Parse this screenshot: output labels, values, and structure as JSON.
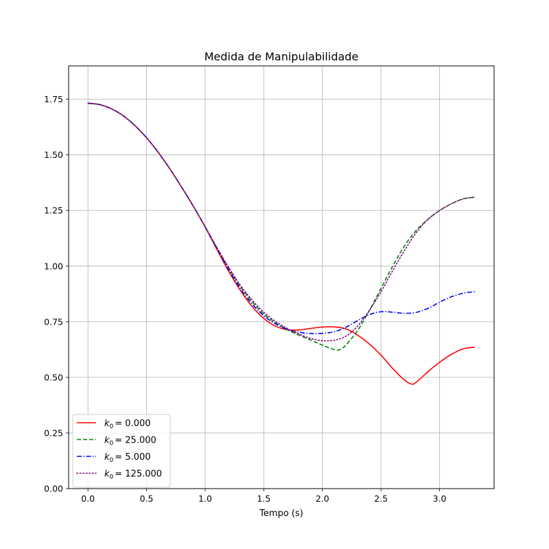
{
  "chart_data": {
    "type": "line",
    "title": "Medida de Manipulabilidade",
    "xlabel": "Tempo (s)",
    "ylabel": "",
    "xlim": [
      -0.165,
      3.465
    ],
    "ylim": [
      0.0,
      1.9
    ],
    "xticks": [
      0.0,
      0.5,
      1.0,
      1.5,
      2.0,
      2.5,
      3.0
    ],
    "xtick_labels": [
      "0.0",
      "0.5",
      "1.0",
      "1.5",
      "2.0",
      "2.5",
      "3.0"
    ],
    "yticks": [
      0.0,
      0.25,
      0.5,
      0.75,
      1.0,
      1.25,
      1.5,
      1.75
    ],
    "ytick_labels": [
      "0.00",
      "0.25",
      "0.50",
      "0.75",
      "1.00",
      "1.25",
      "1.50",
      "1.75"
    ],
    "grid": true,
    "legend_position": "lower-left",
    "series": [
      {
        "name": "k0 = 0.000",
        "legend_symbol": "k",
        "legend_sub": "0",
        "legend_value": "= 0.000",
        "color": "#ff0000",
        "style": "solid",
        "x": [
          0.0,
          0.1,
          0.2,
          0.3,
          0.4,
          0.5,
          0.6,
          0.7,
          0.8,
          0.9,
          1.0,
          1.1,
          1.2,
          1.3,
          1.4,
          1.5,
          1.6,
          1.7,
          1.8,
          1.9,
          2.0,
          2.1,
          2.2,
          2.3,
          2.4,
          2.5,
          2.6,
          2.7,
          2.76,
          2.8,
          2.9,
          3.0,
          3.1,
          3.2,
          3.3
        ],
        "y": [
          1.732,
          1.726,
          1.707,
          1.676,
          1.632,
          1.577,
          1.511,
          1.436,
          1.354,
          1.268,
          1.175,
          1.075,
          0.977,
          0.891,
          0.819,
          0.765,
          0.73,
          0.714,
          0.713,
          0.72,
          0.726,
          0.727,
          0.718,
          0.69,
          0.65,
          0.6,
          0.54,
          0.488,
          0.47,
          0.478,
          0.525,
          0.568,
          0.603,
          0.628,
          0.636
        ]
      },
      {
        "name": "k0 = 25.000",
        "legend_symbol": "k",
        "legend_sub": "0",
        "legend_value": "= 25.000",
        "color": "#008000",
        "style": "dashed",
        "x": [
          0.0,
          0.1,
          0.2,
          0.3,
          0.4,
          0.5,
          0.6,
          0.7,
          0.8,
          0.9,
          1.0,
          1.1,
          1.2,
          1.3,
          1.4,
          1.5,
          1.6,
          1.7,
          1.8,
          1.9,
          2.0,
          2.1,
          2.15,
          2.2,
          2.3,
          2.4,
          2.5,
          2.6,
          2.7,
          2.8,
          2.9,
          3.0,
          3.1,
          3.2,
          3.3
        ],
        "y": [
          1.732,
          1.726,
          1.707,
          1.676,
          1.632,
          1.577,
          1.511,
          1.436,
          1.354,
          1.268,
          1.177,
          1.082,
          0.991,
          0.909,
          0.84,
          0.785,
          0.745,
          0.714,
          0.69,
          0.668,
          0.645,
          0.625,
          0.625,
          0.645,
          0.71,
          0.8,
          0.9,
          1.0,
          1.09,
          1.16,
          1.21,
          1.25,
          1.28,
          1.302,
          1.31
        ]
      },
      {
        "name": "k0 = 5.000",
        "legend_symbol": "k",
        "legend_sub": "0",
        "legend_value": "= 5.000",
        "color": "#0000ff",
        "style": "dashdot",
        "x": [
          0.0,
          0.1,
          0.2,
          0.3,
          0.4,
          0.5,
          0.6,
          0.7,
          0.8,
          0.9,
          1.0,
          1.1,
          1.2,
          1.3,
          1.4,
          1.5,
          1.6,
          1.7,
          1.8,
          1.9,
          2.0,
          2.1,
          2.2,
          2.3,
          2.4,
          2.5,
          2.6,
          2.7,
          2.8,
          2.9,
          3.0,
          3.1,
          3.2,
          3.3
        ],
        "y": [
          1.732,
          1.726,
          1.707,
          1.676,
          1.632,
          1.577,
          1.511,
          1.436,
          1.354,
          1.268,
          1.176,
          1.079,
          0.985,
          0.9,
          0.83,
          0.777,
          0.74,
          0.716,
          0.703,
          0.697,
          0.698,
          0.705,
          0.725,
          0.755,
          0.782,
          0.795,
          0.793,
          0.788,
          0.792,
          0.81,
          0.838,
          0.862,
          0.878,
          0.885
        ]
      },
      {
        "name": "k0 = 125.000",
        "legend_symbol": "k",
        "legend_sub": "0",
        "legend_value": "= 125.000",
        "color": "#800080",
        "style": "dotted",
        "x": [
          0.0,
          0.1,
          0.2,
          0.3,
          0.4,
          0.5,
          0.6,
          0.7,
          0.8,
          0.9,
          1.0,
          1.1,
          1.2,
          1.3,
          1.4,
          1.5,
          1.6,
          1.7,
          1.8,
          1.9,
          2.0,
          2.1,
          2.2,
          2.3,
          2.4,
          2.5,
          2.6,
          2.7,
          2.8,
          2.9,
          3.0,
          3.1,
          3.2,
          3.3
        ],
        "y": [
          1.732,
          1.726,
          1.707,
          1.676,
          1.632,
          1.577,
          1.511,
          1.436,
          1.354,
          1.268,
          1.177,
          1.084,
          0.995,
          0.914,
          0.848,
          0.793,
          0.752,
          0.72,
          0.695,
          0.675,
          0.665,
          0.667,
          0.685,
          0.73,
          0.8,
          0.885,
          0.98,
          1.07,
          1.15,
          1.21,
          1.25,
          1.28,
          1.302,
          1.31
        ]
      }
    ]
  }
}
